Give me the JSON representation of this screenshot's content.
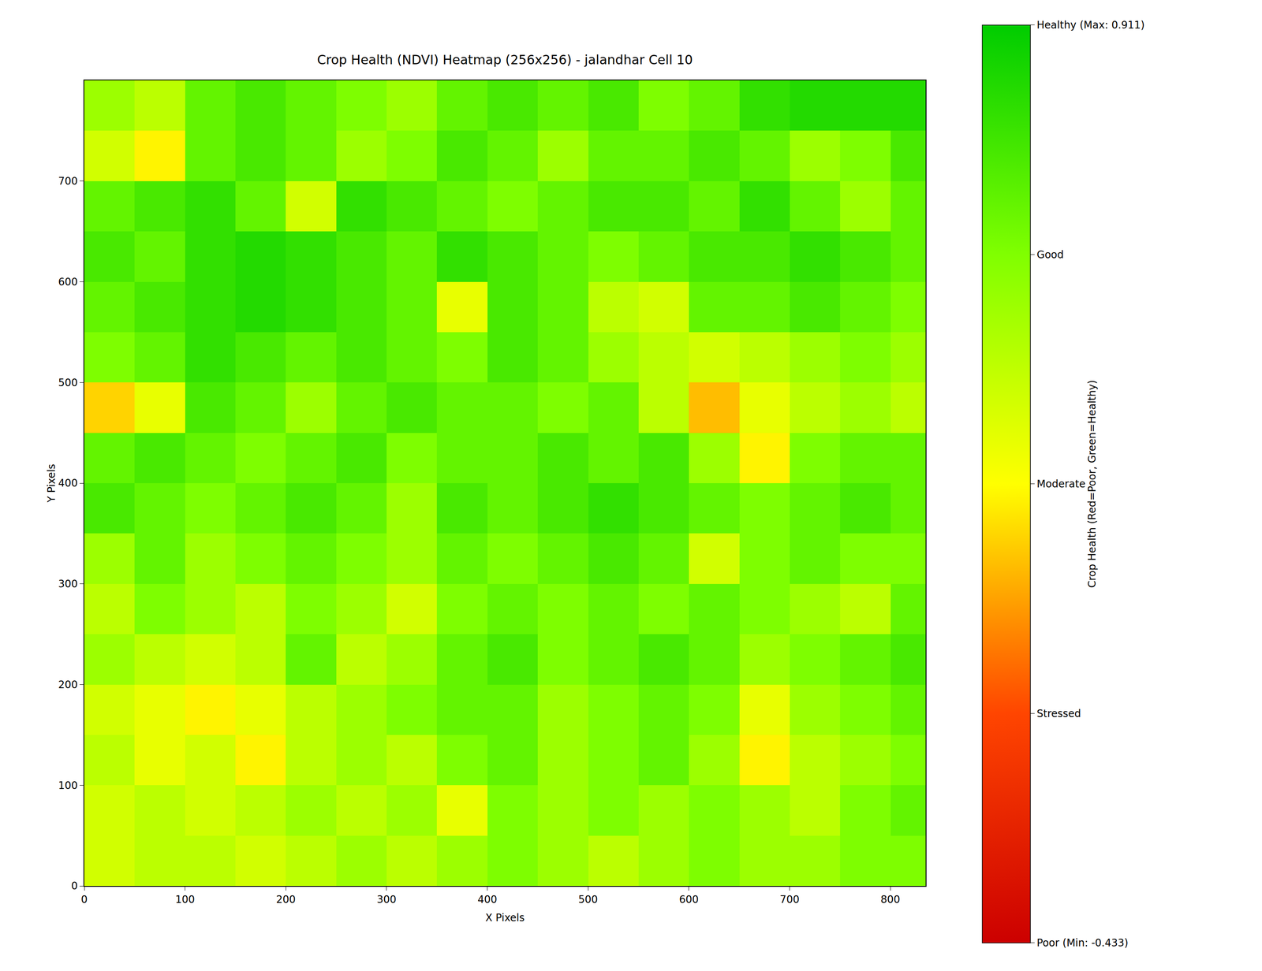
{
  "chart_data": {
    "type": "heatmap",
    "title": "Crop Health (NDVI) Heatmap (256x256) - jalandhar Cell 10",
    "x_label": "X Pixels",
    "y_label": "Y Pixels",
    "x": [
      25,
      75,
      125,
      175,
      225,
      275,
      325,
      375,
      425,
      475,
      525,
      575,
      625,
      675,
      725,
      775,
      825
    ],
    "y": [
      25,
      75,
      125,
      175,
      225,
      275,
      325,
      375,
      425,
      475,
      525,
      575,
      625,
      675,
      725,
      775
    ],
    "z": [
      [
        0.36,
        0.42,
        0.42,
        0.36,
        0.42,
        0.5,
        0.42,
        0.5,
        0.58,
        0.5,
        0.42,
        0.5,
        0.58,
        0.5,
        0.5,
        0.58,
        0.58
      ],
      [
        0.36,
        0.42,
        0.36,
        0.42,
        0.5,
        0.42,
        0.5,
        0.3,
        0.58,
        0.5,
        0.58,
        0.5,
        0.58,
        0.5,
        0.42,
        0.58,
        0.65
      ],
      [
        0.42,
        0.3,
        0.36,
        0.22,
        0.42,
        0.5,
        0.42,
        0.58,
        0.65,
        0.5,
        0.58,
        0.65,
        0.5,
        0.22,
        0.42,
        0.5,
        0.58
      ],
      [
        0.36,
        0.3,
        0.22,
        0.3,
        0.42,
        0.5,
        0.58,
        0.65,
        0.65,
        0.5,
        0.58,
        0.65,
        0.58,
        0.3,
        0.5,
        0.58,
        0.65
      ],
      [
        0.5,
        0.42,
        0.36,
        0.42,
        0.65,
        0.42,
        0.5,
        0.65,
        0.72,
        0.58,
        0.65,
        0.72,
        0.65,
        0.5,
        0.58,
        0.65,
        0.72
      ],
      [
        0.42,
        0.58,
        0.5,
        0.42,
        0.58,
        0.5,
        0.36,
        0.58,
        0.65,
        0.58,
        0.65,
        0.58,
        0.65,
        0.58,
        0.5,
        0.42,
        0.65
      ],
      [
        0.5,
        0.65,
        0.5,
        0.58,
        0.65,
        0.58,
        0.5,
        0.65,
        0.58,
        0.65,
        0.72,
        0.65,
        0.36,
        0.58,
        0.65,
        0.58,
        0.58
      ],
      [
        0.72,
        0.65,
        0.58,
        0.65,
        0.72,
        0.65,
        0.5,
        0.72,
        0.65,
        0.72,
        0.78,
        0.72,
        0.65,
        0.58,
        0.65,
        0.72,
        0.65
      ],
      [
        0.65,
        0.72,
        0.65,
        0.58,
        0.65,
        0.72,
        0.58,
        0.65,
        0.65,
        0.72,
        0.65,
        0.72,
        0.5,
        0.22,
        0.58,
        0.65,
        0.65
      ],
      [
        0.16,
        0.3,
        0.72,
        0.65,
        0.5,
        0.65,
        0.72,
        0.65,
        0.65,
        0.58,
        0.65,
        0.42,
        0.12,
        0.3,
        0.42,
        0.5,
        0.42
      ],
      [
        0.58,
        0.65,
        0.78,
        0.72,
        0.65,
        0.72,
        0.65,
        0.58,
        0.72,
        0.65,
        0.5,
        0.42,
        0.36,
        0.42,
        0.5,
        0.58,
        0.5
      ],
      [
        0.65,
        0.72,
        0.78,
        0.82,
        0.78,
        0.72,
        0.65,
        0.3,
        0.72,
        0.65,
        0.42,
        0.36,
        0.65,
        0.65,
        0.72,
        0.65,
        0.58
      ],
      [
        0.72,
        0.65,
        0.78,
        0.82,
        0.78,
        0.72,
        0.65,
        0.78,
        0.72,
        0.65,
        0.58,
        0.65,
        0.72,
        0.72,
        0.78,
        0.72,
        0.65
      ],
      [
        0.65,
        0.72,
        0.78,
        0.65,
        0.36,
        0.78,
        0.72,
        0.65,
        0.58,
        0.65,
        0.72,
        0.72,
        0.65,
        0.78,
        0.65,
        0.5,
        0.65
      ],
      [
        0.36,
        0.22,
        0.65,
        0.72,
        0.65,
        0.5,
        0.58,
        0.72,
        0.65,
        0.5,
        0.65,
        0.65,
        0.72,
        0.65,
        0.5,
        0.58,
        0.72
      ],
      [
        0.5,
        0.42,
        0.65,
        0.72,
        0.65,
        0.58,
        0.5,
        0.65,
        0.72,
        0.65,
        0.72,
        0.58,
        0.65,
        0.78,
        0.82,
        0.82,
        0.82
      ]
    ],
    "xlim": [
      0,
      835
    ],
    "ylim": [
      0,
      800
    ],
    "xticks": [
      0,
      100,
      200,
      300,
      400,
      500,
      600,
      700,
      800
    ],
    "yticks": [
      0,
      100,
      200,
      300,
      400,
      500,
      600,
      700
    ],
    "colors": [
      "#cc0000",
      "#ff4500",
      "#ffff00",
      "#80ff00",
      "#00cc00"
    ],
    "colorbar": {
      "title": "Crop Health (Red=Poor, Green=Healthy)",
      "range": [
        -0.433,
        0.911
      ],
      "ticks": [
        {
          "value": -0.433,
          "label": "Poor (Min: -0.433)"
        },
        {
          "value": -0.097,
          "label": "Stressed"
        },
        {
          "value": 0.239,
          "label": "Moderate"
        },
        {
          "value": 0.575,
          "label": "Good"
        },
        {
          "value": 0.911,
          "label": "Healthy (Max: 0.911)"
        }
      ]
    }
  }
}
